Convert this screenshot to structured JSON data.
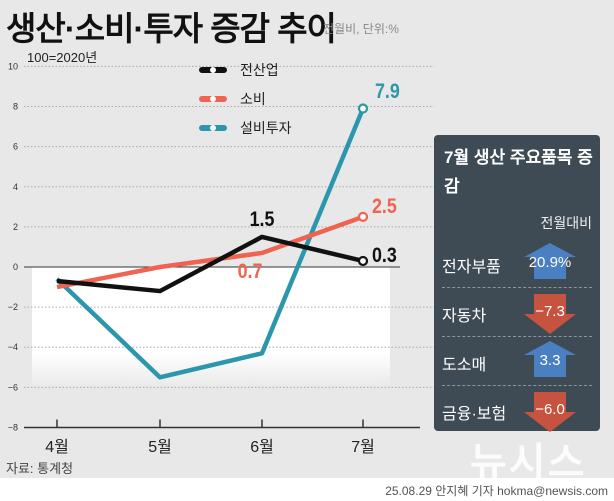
{
  "title": "생산·소비·투자 증감 추이",
  "subtitle": "전월비, 단위:%",
  "base_note": "100=2020년",
  "source": "자료: 통계청",
  "credit": "25.08.29 안지혜 기자 hokma@newsis.com",
  "logo": "뉴시스",
  "chart_data": {
    "type": "line",
    "categories": [
      "4월",
      "5월",
      "6월",
      "7월"
    ],
    "ylim": [
      -8,
      10
    ],
    "yticks": [
      "10",
      "8",
      "6",
      "4",
      "2",
      "0",
      "−2",
      "−4",
      "−6",
      "−8"
    ],
    "ytick_values": [
      10,
      8,
      6,
      4,
      2,
      0,
      -2,
      -4,
      -6,
      -8
    ],
    "grid": true,
    "legend_position": "top-center",
    "series": [
      {
        "name": "전산업",
        "color": "#111111",
        "values": [
          -0.7,
          -1.2,
          1.5,
          0.3
        ],
        "labels": {
          "2": "1.5",
          "3": "0.3"
        }
      },
      {
        "name": "소비",
        "color": "#ef6350",
        "values": [
          -1.0,
          0.0,
          0.7,
          2.5
        ],
        "labels": {
          "2": "0.7",
          "3": "2.5"
        }
      },
      {
        "name": "설비투자",
        "color": "#2b97ad",
        "values": [
          -0.6,
          -5.5,
          -4.3,
          7.9
        ],
        "labels": {
          "3": "7.9"
        }
      }
    ]
  },
  "panel": {
    "title": "7월 생산 주요품목 증감",
    "column_header": "전월대비",
    "up_color": "#4a7fc1",
    "down_color": "#c6533f",
    "items": [
      {
        "label": "전자부품",
        "value": "20.9%",
        "direction": "up"
      },
      {
        "label": "자동차",
        "value": "−7.3",
        "direction": "down"
      },
      {
        "label": "도소매",
        "value": "3.3",
        "direction": "up"
      },
      {
        "label": "금융·보험",
        "value": "−6.0",
        "direction": "down"
      }
    ]
  }
}
